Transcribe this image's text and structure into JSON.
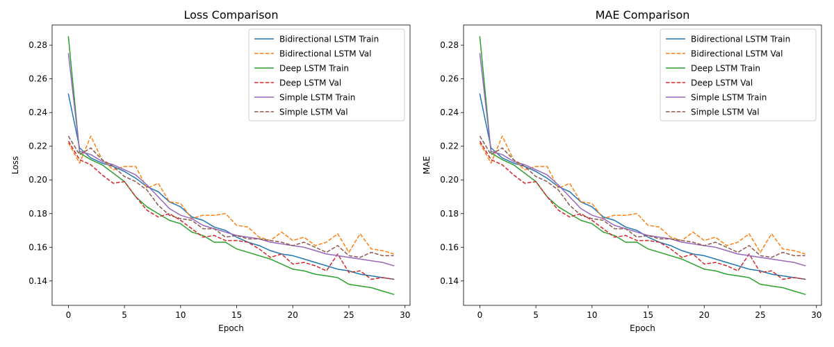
{
  "chart_data": [
    {
      "type": "line",
      "title": "Loss Comparison",
      "xlabel": "Epoch",
      "ylabel": "Loss",
      "xlim": [
        -1.45,
        30.45
      ],
      "ylim": [
        0.1255,
        0.292
      ],
      "xticks": [
        0,
        5,
        10,
        15,
        20,
        25,
        30
      ],
      "yticks": [
        0.14,
        0.16,
        0.18,
        0.2,
        0.22,
        0.24,
        0.26,
        0.28
      ],
      "ytick_labels": [
        "0.14",
        "0.16",
        "0.18",
        "0.20",
        "0.22",
        "0.24",
        "0.26",
        "0.28"
      ],
      "grid": false,
      "legend_position": "upper-right",
      "x": [
        0,
        1,
        2,
        3,
        4,
        5,
        6,
        7,
        8,
        9,
        10,
        11,
        12,
        13,
        14,
        15,
        16,
        17,
        18,
        19,
        20,
        21,
        22,
        23,
        24,
        25,
        26,
        27,
        28,
        29
      ],
      "series": [
        {
          "name": "Bidirectional LSTM Train",
          "color": "#1f77b4",
          "dash": "solid",
          "values": [
            0.251,
            0.219,
            0.213,
            0.21,
            0.208,
            0.205,
            0.201,
            0.196,
            0.193,
            0.187,
            0.184,
            0.178,
            0.176,
            0.172,
            0.17,
            0.166,
            0.163,
            0.161,
            0.158,
            0.156,
            0.155,
            0.153,
            0.151,
            0.149,
            0.147,
            0.146,
            0.144,
            0.143,
            0.142,
            0.141
          ]
        },
        {
          "name": "Bidirectional LSTM Val",
          "color": "#ff7f0e",
          "dash": "dashed",
          "values": [
            0.222,
            0.21,
            0.226,
            0.212,
            0.206,
            0.208,
            0.208,
            0.195,
            0.198,
            0.187,
            0.186,
            0.177,
            0.179,
            0.179,
            0.18,
            0.173,
            0.172,
            0.166,
            0.164,
            0.169,
            0.164,
            0.166,
            0.161,
            0.163,
            0.168,
            0.157,
            0.168,
            0.159,
            0.158,
            0.156
          ]
        },
        {
          "name": "Deep LSTM Train",
          "color": "#2ca02c",
          "dash": "solid",
          "values": [
            0.285,
            0.216,
            0.212,
            0.209,
            0.204,
            0.199,
            0.19,
            0.184,
            0.18,
            0.176,
            0.174,
            0.169,
            0.167,
            0.163,
            0.163,
            0.159,
            0.157,
            0.155,
            0.153,
            0.15,
            0.147,
            0.146,
            0.144,
            0.143,
            0.142,
            0.138,
            0.137,
            0.136,
            0.134,
            0.132
          ]
        },
        {
          "name": "Deep LSTM Val",
          "color": "#d62728",
          "dash": "dashed",
          "values": [
            0.223,
            0.212,
            0.209,
            0.203,
            0.198,
            0.199,
            0.19,
            0.182,
            0.178,
            0.18,
            0.176,
            0.171,
            0.166,
            0.167,
            0.164,
            0.164,
            0.163,
            0.159,
            0.154,
            0.156,
            0.15,
            0.151,
            0.149,
            0.146,
            0.156,
            0.145,
            0.146,
            0.141,
            0.142,
            0.141
          ]
        },
        {
          "name": "Simple LSTM Train",
          "color": "#9467bd",
          "dash": "solid",
          "values": [
            0.275,
            0.217,
            0.215,
            0.211,
            0.209,
            0.206,
            0.203,
            0.197,
            0.19,
            0.183,
            0.179,
            0.177,
            0.173,
            0.171,
            0.169,
            0.167,
            0.166,
            0.165,
            0.163,
            0.162,
            0.161,
            0.16,
            0.158,
            0.156,
            0.155,
            0.154,
            0.153,
            0.152,
            0.151,
            0.149
          ]
        },
        {
          "name": "Simple LSTM Val",
          "color": "#8c564b",
          "dash": "dashed",
          "values": [
            0.226,
            0.215,
            0.219,
            0.212,
            0.208,
            0.202,
            0.199,
            0.194,
            0.185,
            0.179,
            0.177,
            0.176,
            0.171,
            0.171,
            0.166,
            0.167,
            0.165,
            0.165,
            0.164,
            0.163,
            0.161,
            0.163,
            0.16,
            0.157,
            0.161,
            0.155,
            0.154,
            0.157,
            0.155,
            0.155
          ]
        }
      ]
    },
    {
      "type": "line",
      "title": "MAE Comparison",
      "xlabel": "Epoch",
      "ylabel": "MAE",
      "xlim": [
        -1.45,
        30.45
      ],
      "ylim": [
        0.1255,
        0.292
      ],
      "xticks": [
        0,
        5,
        10,
        15,
        20,
        25,
        30
      ],
      "yticks": [
        0.14,
        0.16,
        0.18,
        0.2,
        0.22,
        0.24,
        0.26,
        0.28
      ],
      "ytick_labels": [
        "0.14",
        "0.16",
        "0.18",
        "0.20",
        "0.22",
        "0.24",
        "0.26",
        "0.28"
      ],
      "grid": false,
      "legend_position": "upper-right",
      "x": [
        0,
        1,
        2,
        3,
        4,
        5,
        6,
        7,
        8,
        9,
        10,
        11,
        12,
        13,
        14,
        15,
        16,
        17,
        18,
        19,
        20,
        21,
        22,
        23,
        24,
        25,
        26,
        27,
        28,
        29
      ],
      "series": [
        {
          "name": "Bidirectional LSTM Train",
          "color": "#1f77b4",
          "dash": "solid",
          "values": [
            0.251,
            0.219,
            0.213,
            0.21,
            0.208,
            0.205,
            0.201,
            0.196,
            0.193,
            0.187,
            0.184,
            0.178,
            0.176,
            0.172,
            0.17,
            0.166,
            0.163,
            0.161,
            0.158,
            0.156,
            0.155,
            0.153,
            0.151,
            0.149,
            0.147,
            0.146,
            0.144,
            0.143,
            0.142,
            0.141
          ]
        },
        {
          "name": "Bidirectional LSTM Val",
          "color": "#ff7f0e",
          "dash": "dashed",
          "values": [
            0.222,
            0.21,
            0.226,
            0.212,
            0.206,
            0.208,
            0.208,
            0.195,
            0.198,
            0.187,
            0.186,
            0.177,
            0.179,
            0.179,
            0.18,
            0.173,
            0.172,
            0.166,
            0.164,
            0.169,
            0.164,
            0.166,
            0.161,
            0.163,
            0.168,
            0.157,
            0.168,
            0.159,
            0.158,
            0.156
          ]
        },
        {
          "name": "Deep LSTM Train",
          "color": "#2ca02c",
          "dash": "solid",
          "values": [
            0.285,
            0.216,
            0.212,
            0.209,
            0.204,
            0.199,
            0.19,
            0.184,
            0.18,
            0.176,
            0.174,
            0.169,
            0.167,
            0.163,
            0.163,
            0.159,
            0.157,
            0.155,
            0.153,
            0.15,
            0.147,
            0.146,
            0.144,
            0.143,
            0.142,
            0.138,
            0.137,
            0.136,
            0.134,
            0.132
          ]
        },
        {
          "name": "Deep LSTM Val",
          "color": "#d62728",
          "dash": "dashed",
          "values": [
            0.223,
            0.212,
            0.209,
            0.203,
            0.198,
            0.199,
            0.19,
            0.182,
            0.178,
            0.18,
            0.176,
            0.171,
            0.166,
            0.167,
            0.164,
            0.164,
            0.163,
            0.159,
            0.154,
            0.156,
            0.15,
            0.151,
            0.149,
            0.146,
            0.156,
            0.145,
            0.146,
            0.141,
            0.142,
            0.141
          ]
        },
        {
          "name": "Simple LSTM Train",
          "color": "#9467bd",
          "dash": "solid",
          "values": [
            0.275,
            0.217,
            0.215,
            0.211,
            0.209,
            0.206,
            0.203,
            0.197,
            0.19,
            0.183,
            0.179,
            0.177,
            0.173,
            0.171,
            0.169,
            0.167,
            0.166,
            0.165,
            0.163,
            0.162,
            0.161,
            0.16,
            0.158,
            0.156,
            0.155,
            0.154,
            0.153,
            0.152,
            0.151,
            0.149
          ]
        },
        {
          "name": "Simple LSTM Val",
          "color": "#8c564b",
          "dash": "dashed",
          "values": [
            0.226,
            0.215,
            0.219,
            0.212,
            0.208,
            0.202,
            0.199,
            0.194,
            0.185,
            0.179,
            0.177,
            0.176,
            0.171,
            0.171,
            0.166,
            0.167,
            0.165,
            0.165,
            0.164,
            0.163,
            0.161,
            0.163,
            0.16,
            0.157,
            0.161,
            0.155,
            0.154,
            0.157,
            0.155,
            0.155
          ]
        }
      ]
    }
  ]
}
